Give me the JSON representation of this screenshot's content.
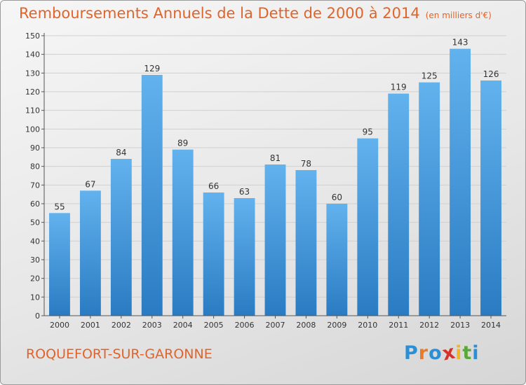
{
  "header": {
    "title": "Remboursements Annuels de la Dette de 2000 à 2014",
    "unit": "(en milliers d'€)"
  },
  "footer": {
    "commune": "ROQUEFORT-SUR-GARONNE",
    "logo": {
      "letters": [
        "P",
        "r",
        "o",
        "x",
        "i",
        "t",
        "i"
      ],
      "colors": [
        "#2a8fd6",
        "#e87a2a",
        "#2a8fd6",
        "#d8312a",
        "#f1b52a",
        "#5aa83a",
        "#2a8fd6"
      ]
    }
  },
  "colors": {
    "bar_light": "#62b2ee",
    "bar_dark": "#2a7bc2",
    "accent": "#e0642a",
    "grid": "#d0d0d0",
    "axis": "#555555"
  },
  "chart_data": {
    "type": "bar",
    "title": "Remboursements Annuels de la Dette de 2000 à 2014",
    "categories": [
      "2000",
      "2001",
      "2002",
      "2003",
      "2004",
      "2005",
      "2006",
      "2007",
      "2008",
      "2009",
      "2010",
      "2011",
      "2012",
      "2013",
      "2014"
    ],
    "values": [
      55,
      67,
      84,
      129,
      89,
      66,
      63,
      81,
      78,
      60,
      95,
      119,
      125,
      143,
      126
    ],
    "ylim": [
      0,
      150
    ],
    "yticks": [
      0,
      10,
      20,
      30,
      40,
      50,
      60,
      70,
      80,
      90,
      100,
      110,
      120,
      130,
      140,
      150
    ],
    "grid": true,
    "data_labels": true
  }
}
